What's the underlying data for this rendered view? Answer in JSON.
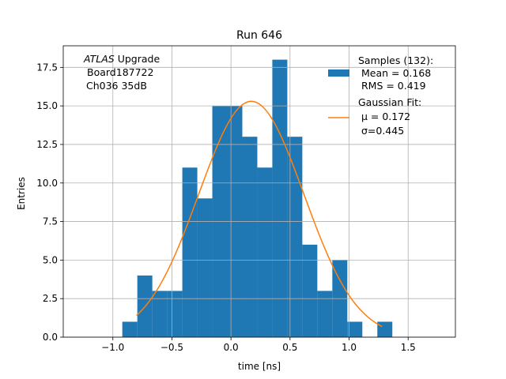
{
  "chart_data": {
    "type": "bar",
    "title": "Run 646",
    "xlabel": "time [ns]",
    "ylabel": "Entries",
    "xlim": [
      -1.42,
      1.9
    ],
    "ylim": [
      0,
      18.9
    ],
    "grid": true,
    "xticks": [
      -1.0,
      -0.5,
      0.0,
      0.5,
      1.0,
      1.5
    ],
    "xtick_labels": [
      "−1.0",
      "−0.5",
      "0.0",
      "0.5",
      "1.0",
      "1.5"
    ],
    "yticks": [
      0.0,
      2.5,
      5.0,
      7.5,
      10.0,
      12.5,
      15.0,
      17.5
    ],
    "ytick_labels": [
      "0.0",
      "2.5",
      "5.0",
      "7.5",
      "10.0",
      "12.5",
      "15.0",
      "17.5"
    ],
    "annotation": {
      "line1_italic": "ATLAS",
      "line1_rest": " Upgrade",
      "line2": "Board187722",
      "line3": "Ch036 35dB"
    },
    "histogram": {
      "name": "Samples (132):",
      "color": "#1f77b4",
      "bin_width": 0.127,
      "bin_edges_start": -0.92,
      "counts": [
        1,
        4,
        3,
        3,
        11,
        9,
        15,
        15,
        13,
        11,
        18,
        13,
        6,
        3,
        5,
        1,
        0,
        1
      ]
    },
    "fit": {
      "name": "Gaussian Fit:",
      "color": "#ff7f0e",
      "amplitude": 15.3,
      "mu": 0.172,
      "sigma": 0.445,
      "x_range": [
        -0.8,
        1.28
      ]
    },
    "legend": {
      "placement": "top-right",
      "samples_lines": [
        "Samples (132):",
        " Mean = 0.168",
        " RMS = 0.419"
      ],
      "fit_lines": [
        "Gaussian Fit:",
        " μ = 0.172",
        " σ=0.445"
      ]
    }
  }
}
